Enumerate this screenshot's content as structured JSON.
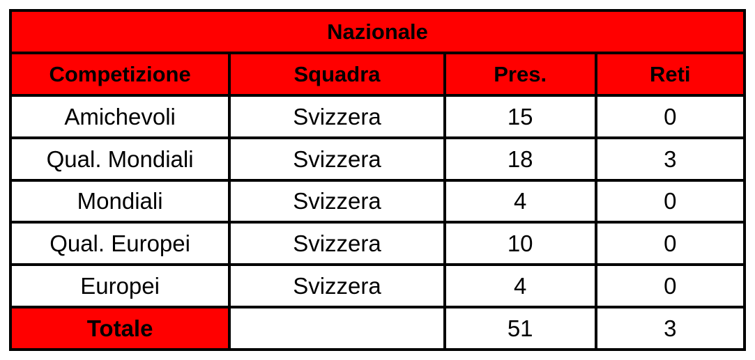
{
  "table": {
    "title": "Nazionale",
    "headers": [
      "Competizione",
      "Squadra",
      "Pres.",
      "Reti"
    ],
    "rows": [
      {
        "competizione": "Amichevoli",
        "squadra": "Svizzera",
        "pres": "15",
        "reti": "0"
      },
      {
        "competizione": "Qual. Mondiali",
        "squadra": "Svizzera",
        "pres": "18",
        "reti": "3"
      },
      {
        "competizione": "Mondiali",
        "squadra": "Svizzera",
        "pres": "4",
        "reti": "0"
      },
      {
        "competizione": "Qual. Europei",
        "squadra": "Svizzera",
        "pres": "10",
        "reti": "0"
      },
      {
        "competizione": "Europei",
        "squadra": "Svizzera",
        "pres": "4",
        "reti": "0"
      }
    ],
    "total": {
      "label": "Totale",
      "squadra": "",
      "pres": "51",
      "reti": "3"
    }
  },
  "colors": {
    "header_fill": "#ff0000",
    "border": "#000000",
    "cell_fill": "#ffffff"
  }
}
